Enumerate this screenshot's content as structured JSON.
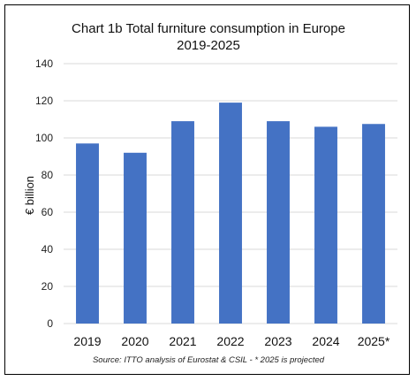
{
  "chart_data": {
    "type": "bar",
    "title_lines": [
      "Chart 1b Total furniture consumption in Europe",
      "2019-2025"
    ],
    "categories": [
      "2019",
      "2020",
      "2021",
      "2022",
      "2023",
      "2024",
      "2025*"
    ],
    "values": [
      97,
      92,
      109,
      119,
      109,
      106,
      107.5
    ],
    "ylabel": "€ billion",
    "ylim": [
      0,
      140
    ],
    "yticks": [
      0,
      20,
      40,
      60,
      80,
      100,
      120,
      140
    ],
    "grid": true,
    "legend": "none",
    "bar_color": "#4472C4",
    "source": "Source: ITTO analysis of Eurostat & CSIL - * 2025 is projected"
  }
}
